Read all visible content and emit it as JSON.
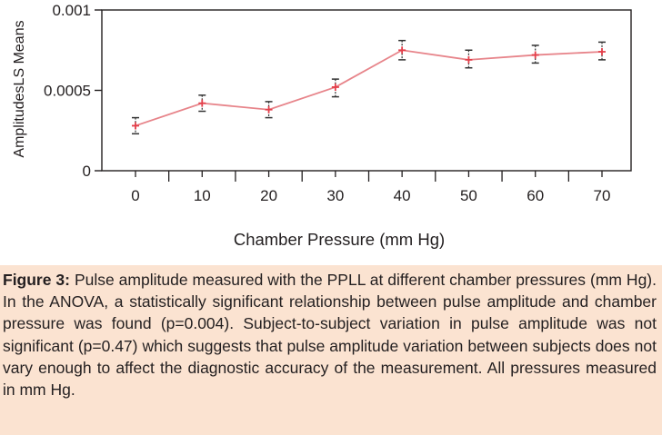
{
  "chart_data": {
    "type": "line",
    "xlabel": "Chamber Pressure (mm Hg)",
    "ylabel": "AmplitudesLS Means",
    "x": [
      0,
      10,
      20,
      30,
      40,
      50,
      60,
      70
    ],
    "xticks": [
      "0",
      "10",
      "20",
      "30",
      "40",
      "50",
      "60",
      "70"
    ],
    "yticks": [
      "0",
      "0.0005",
      "0.001"
    ],
    "ylim": [
      0,
      0.001
    ],
    "series": [
      {
        "values": [
          0.00028,
          0.00042,
          0.00038,
          0.00052,
          0.00075,
          0.00069,
          0.00072,
          0.00074
        ],
        "err_upper": [
          0.00033,
          0.00047,
          0.00043,
          0.00057,
          0.00081,
          0.00075,
          0.00078,
          0.0008
        ],
        "err_lower": [
          0.00023,
          0.00037,
          0.00033,
          0.00046,
          0.00069,
          0.00064,
          0.00067,
          0.00069
        ]
      }
    ],
    "line_color": "#e7848a",
    "marker_color": "#e43f4a",
    "errorbar_color": "#333333",
    "grid": false,
    "legend": "none"
  },
  "caption": {
    "label": "Figure 3:",
    "text": "Pulse amplitude measured with the PPLL at different chamber pressures (mm Hg). In the ANOVA, a statistically significant relationship between pulse amplitude and chamber pressure was found (p=0.004). Subject-to-subject variation in pulse amplitude was not significant (p=0.47) which suggests that pulse amplitude variation between subjects does not vary enough to affect the diagnostic accuracy of the measurement. All pressures measured in mm Hg.",
    "background": "#fbe3d1"
  }
}
